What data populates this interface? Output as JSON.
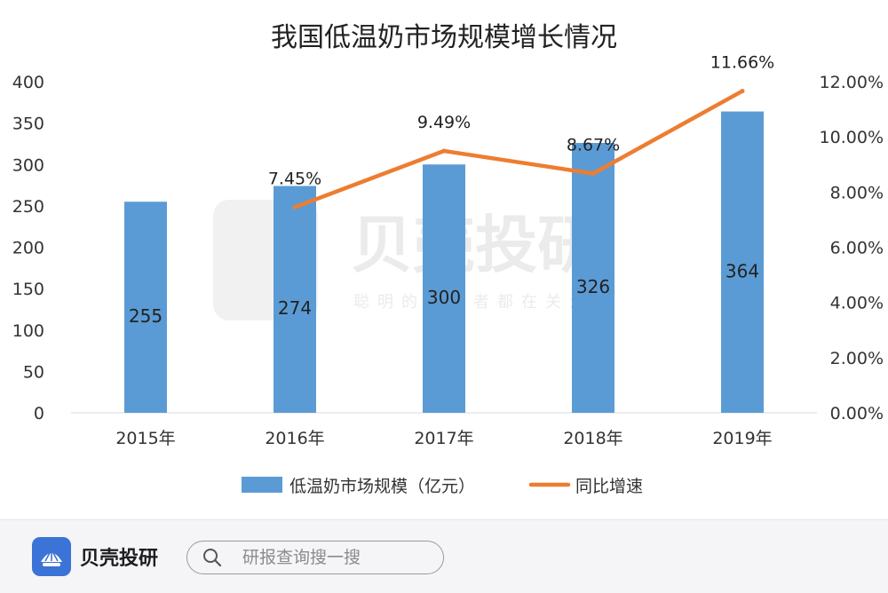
{
  "chart_data": {
    "type": "bar+line",
    "title": "我国低温奶市场规模增长情况",
    "categories": [
      "2015年",
      "2016年",
      "2017年",
      "2018年",
      "2019年"
    ],
    "series": [
      {
        "name": "低温奶市场规模（亿元）",
        "type": "bar",
        "axis": "left",
        "values": [
          255,
          274,
          300,
          326,
          364
        ],
        "labels": [
          "255",
          "274",
          "300",
          "326",
          "364"
        ],
        "color": "#5b9bd5"
      },
      {
        "name": "同比增速",
        "type": "line",
        "axis": "right",
        "values": [
          null,
          7.45,
          9.49,
          8.67,
          11.66
        ],
        "labels": [
          "",
          "7.45%",
          "9.49%",
          "8.67%",
          "11.66%"
        ],
        "color": "#ed7d31"
      }
    ],
    "y_left": {
      "min": 0,
      "max": 400,
      "ticks": [
        0,
        50,
        100,
        150,
        200,
        250,
        300,
        350,
        400
      ],
      "tick_labels": [
        "0",
        "50",
        "100",
        "150",
        "200",
        "250",
        "300",
        "350",
        "400"
      ]
    },
    "y_right": {
      "min": 0,
      "max": 12,
      "ticks": [
        0,
        2,
        4,
        6,
        8,
        10,
        12
      ],
      "tick_labels": [
        "0.00%",
        "2.00%",
        "4.00%",
        "6.00%",
        "8.00%",
        "10.00%",
        "12.00%"
      ]
    },
    "legend_position": "bottom",
    "grid": false
  },
  "watermark": {
    "name": "贝壳投研",
    "slogan": "聪明的投资者都在关注"
  },
  "footer": {
    "brand_name": "贝壳投研",
    "search_placeholder": "研报查询搜一搜"
  },
  "colors": {
    "bar": "#5b9bd5",
    "line": "#ed7d31",
    "brand": "#3b73d6"
  },
  "icons": {
    "brand": "shell-logo-icon",
    "search": "search-icon"
  }
}
